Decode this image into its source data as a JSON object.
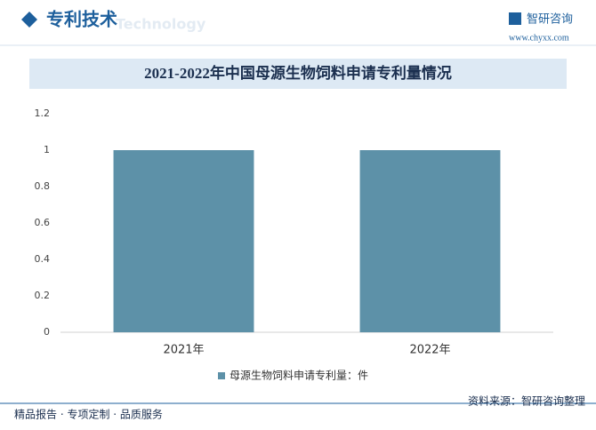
{
  "header": {
    "section": "专利技术",
    "section_en": "Technology",
    "brand": "智研咨询",
    "site": "www.chyxx.com"
  },
  "chart_data": {
    "type": "bar",
    "title": "2021-2022年中国母源生物饲料申请专利量情况",
    "categories": [
      "2021年",
      "2022年"
    ],
    "series": [
      {
        "name": "母源生物饲料申请专利量：件",
        "color": "#5d91a8",
        "values": [
          1,
          1
        ]
      }
    ],
    "ylim": [
      0,
      1.2
    ],
    "yticks": [
      0,
      0.2,
      0.4,
      0.6,
      0.8,
      1,
      1.2
    ],
    "grid": false,
    "legend": "bottom"
  },
  "footer": {
    "left": "精品报告 · 专项定制 · 品质服务",
    "right": "资料来源：智研咨询整理"
  }
}
